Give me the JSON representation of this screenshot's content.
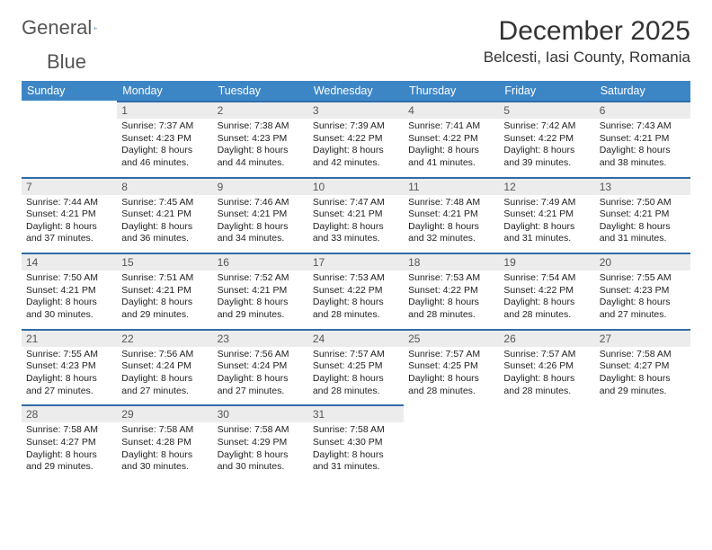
{
  "logo": {
    "word1": "General",
    "word2": "Blue"
  },
  "title": "December 2025",
  "location": "Belcesti, Iasi County, Romania",
  "colors": {
    "header_bg": "#3d86c6",
    "header_text": "#ffffff",
    "daynum_bg": "#ececec",
    "daynum_border": "#2f6da8",
    "brand_blue": "#2f76b8"
  },
  "day_names": [
    "Sunday",
    "Monday",
    "Tuesday",
    "Wednesday",
    "Thursday",
    "Friday",
    "Saturday"
  ],
  "weeks": [
    [
      {
        "n": "",
        "lines": []
      },
      {
        "n": "1",
        "lines": [
          "Sunrise: 7:37 AM",
          "Sunset: 4:23 PM",
          "Daylight: 8 hours",
          "and 46 minutes."
        ]
      },
      {
        "n": "2",
        "lines": [
          "Sunrise: 7:38 AM",
          "Sunset: 4:23 PM",
          "Daylight: 8 hours",
          "and 44 minutes."
        ]
      },
      {
        "n": "3",
        "lines": [
          "Sunrise: 7:39 AM",
          "Sunset: 4:22 PM",
          "Daylight: 8 hours",
          "and 42 minutes."
        ]
      },
      {
        "n": "4",
        "lines": [
          "Sunrise: 7:41 AM",
          "Sunset: 4:22 PM",
          "Daylight: 8 hours",
          "and 41 minutes."
        ]
      },
      {
        "n": "5",
        "lines": [
          "Sunrise: 7:42 AM",
          "Sunset: 4:22 PM",
          "Daylight: 8 hours",
          "and 39 minutes."
        ]
      },
      {
        "n": "6",
        "lines": [
          "Sunrise: 7:43 AM",
          "Sunset: 4:21 PM",
          "Daylight: 8 hours",
          "and 38 minutes."
        ]
      }
    ],
    [
      {
        "n": "7",
        "lines": [
          "Sunrise: 7:44 AM",
          "Sunset: 4:21 PM",
          "Daylight: 8 hours",
          "and 37 minutes."
        ]
      },
      {
        "n": "8",
        "lines": [
          "Sunrise: 7:45 AM",
          "Sunset: 4:21 PM",
          "Daylight: 8 hours",
          "and 36 minutes."
        ]
      },
      {
        "n": "9",
        "lines": [
          "Sunrise: 7:46 AM",
          "Sunset: 4:21 PM",
          "Daylight: 8 hours",
          "and 34 minutes."
        ]
      },
      {
        "n": "10",
        "lines": [
          "Sunrise: 7:47 AM",
          "Sunset: 4:21 PM",
          "Daylight: 8 hours",
          "and 33 minutes."
        ]
      },
      {
        "n": "11",
        "lines": [
          "Sunrise: 7:48 AM",
          "Sunset: 4:21 PM",
          "Daylight: 8 hours",
          "and 32 minutes."
        ]
      },
      {
        "n": "12",
        "lines": [
          "Sunrise: 7:49 AM",
          "Sunset: 4:21 PM",
          "Daylight: 8 hours",
          "and 31 minutes."
        ]
      },
      {
        "n": "13",
        "lines": [
          "Sunrise: 7:50 AM",
          "Sunset: 4:21 PM",
          "Daylight: 8 hours",
          "and 31 minutes."
        ]
      }
    ],
    [
      {
        "n": "14",
        "lines": [
          "Sunrise: 7:50 AM",
          "Sunset: 4:21 PM",
          "Daylight: 8 hours",
          "and 30 minutes."
        ]
      },
      {
        "n": "15",
        "lines": [
          "Sunrise: 7:51 AM",
          "Sunset: 4:21 PM",
          "Daylight: 8 hours",
          "and 29 minutes."
        ]
      },
      {
        "n": "16",
        "lines": [
          "Sunrise: 7:52 AM",
          "Sunset: 4:21 PM",
          "Daylight: 8 hours",
          "and 29 minutes."
        ]
      },
      {
        "n": "17",
        "lines": [
          "Sunrise: 7:53 AM",
          "Sunset: 4:22 PM",
          "Daylight: 8 hours",
          "and 28 minutes."
        ]
      },
      {
        "n": "18",
        "lines": [
          "Sunrise: 7:53 AM",
          "Sunset: 4:22 PM",
          "Daylight: 8 hours",
          "and 28 minutes."
        ]
      },
      {
        "n": "19",
        "lines": [
          "Sunrise: 7:54 AM",
          "Sunset: 4:22 PM",
          "Daylight: 8 hours",
          "and 28 minutes."
        ]
      },
      {
        "n": "20",
        "lines": [
          "Sunrise: 7:55 AM",
          "Sunset: 4:23 PM",
          "Daylight: 8 hours",
          "and 27 minutes."
        ]
      }
    ],
    [
      {
        "n": "21",
        "lines": [
          "Sunrise: 7:55 AM",
          "Sunset: 4:23 PM",
          "Daylight: 8 hours",
          "and 27 minutes."
        ]
      },
      {
        "n": "22",
        "lines": [
          "Sunrise: 7:56 AM",
          "Sunset: 4:24 PM",
          "Daylight: 8 hours",
          "and 27 minutes."
        ]
      },
      {
        "n": "23",
        "lines": [
          "Sunrise: 7:56 AM",
          "Sunset: 4:24 PM",
          "Daylight: 8 hours",
          "and 27 minutes."
        ]
      },
      {
        "n": "24",
        "lines": [
          "Sunrise: 7:57 AM",
          "Sunset: 4:25 PM",
          "Daylight: 8 hours",
          "and 28 minutes."
        ]
      },
      {
        "n": "25",
        "lines": [
          "Sunrise: 7:57 AM",
          "Sunset: 4:25 PM",
          "Daylight: 8 hours",
          "and 28 minutes."
        ]
      },
      {
        "n": "26",
        "lines": [
          "Sunrise: 7:57 AM",
          "Sunset: 4:26 PM",
          "Daylight: 8 hours",
          "and 28 minutes."
        ]
      },
      {
        "n": "27",
        "lines": [
          "Sunrise: 7:58 AM",
          "Sunset: 4:27 PM",
          "Daylight: 8 hours",
          "and 29 minutes."
        ]
      }
    ],
    [
      {
        "n": "28",
        "lines": [
          "Sunrise: 7:58 AM",
          "Sunset: 4:27 PM",
          "Daylight: 8 hours",
          "and 29 minutes."
        ]
      },
      {
        "n": "29",
        "lines": [
          "Sunrise: 7:58 AM",
          "Sunset: 4:28 PM",
          "Daylight: 8 hours",
          "and 30 minutes."
        ]
      },
      {
        "n": "30",
        "lines": [
          "Sunrise: 7:58 AM",
          "Sunset: 4:29 PM",
          "Daylight: 8 hours",
          "and 30 minutes."
        ]
      },
      {
        "n": "31",
        "lines": [
          "Sunrise: 7:58 AM",
          "Sunset: 4:30 PM",
          "Daylight: 8 hours",
          "and 31 minutes."
        ]
      },
      {
        "n": "",
        "lines": []
      },
      {
        "n": "",
        "lines": []
      },
      {
        "n": "",
        "lines": []
      }
    ]
  ]
}
